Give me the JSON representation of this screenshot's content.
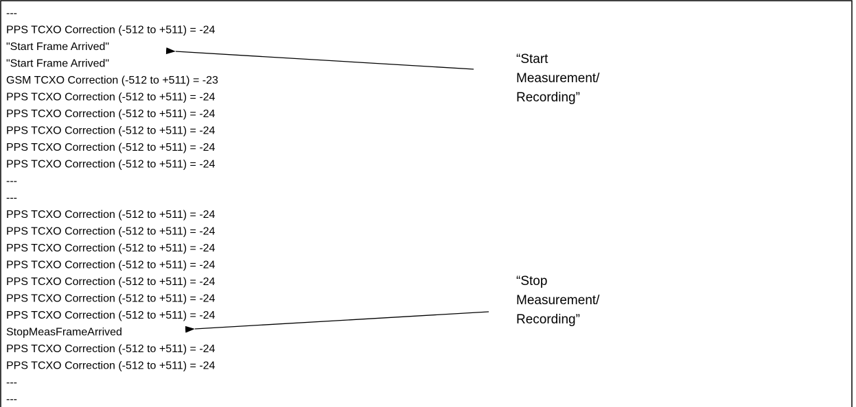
{
  "log_lines": [
    "---",
    "PPS TCXO Correction (-512 to +511) = -24",
    "\"Start Frame Arrived\"",
    "\"Start Frame Arrived\"",
    "GSM TCXO Correction (-512 to +511) = -23",
    "PPS TCXO Correction (-512 to +511) = -24",
    "PPS TCXO Correction (-512 to +511) = -24",
    "PPS TCXO Correction (-512 to +511) = -24",
    "PPS TCXO Correction (-512 to +511) = -24",
    "PPS TCXO Correction (-512 to +511) = -24",
    "---",
    "---",
    "PPS TCXO Correction (-512 to +511) = -24",
    "PPS TCXO Correction (-512 to +511) = -24",
    "PPS TCXO Correction (-512 to +511) = -24",
    "PPS TCXO Correction (-512 to +511) = -24",
    "PPS TCXO Correction (-512 to +511) = -24",
    "PPS TCXO Correction (-512 to +511) = -24",
    "PPS TCXO Correction (-512 to +511) = -24",
    "StopMeasFrameArrived",
    "PPS TCXO Correction (-512 to +511) = -24",
    "PPS TCXO Correction (-512 to +511) = -24",
    "---",
    "---"
  ],
  "annotations": [
    {
      "lines": [
        "“Start",
        "Measurement/",
        "Recording”"
      ]
    },
    {
      "lines": [
        "“Stop",
        "Measurement/",
        "Recording”"
      ]
    }
  ]
}
